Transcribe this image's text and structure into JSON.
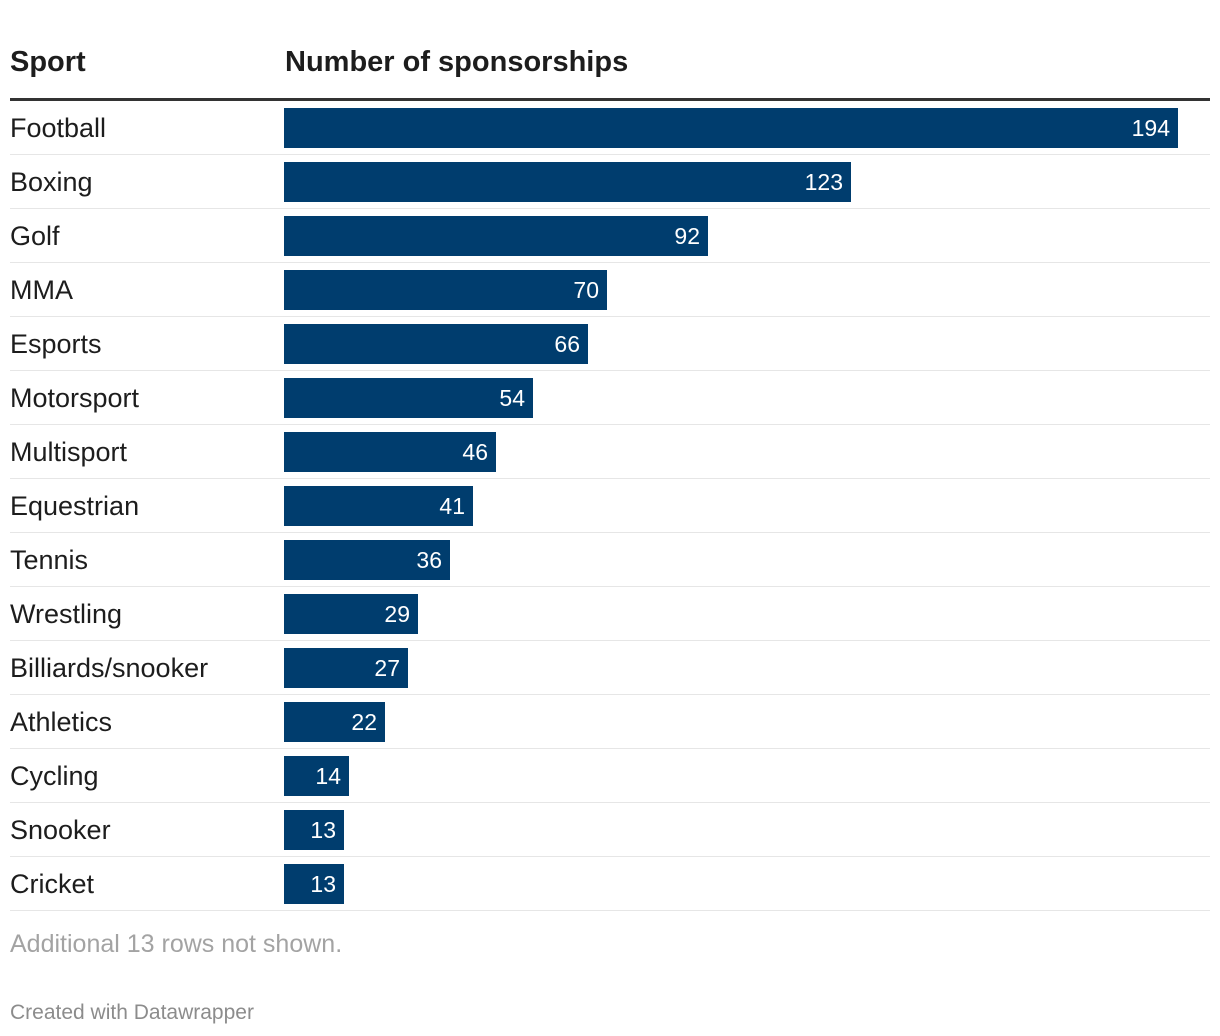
{
  "chart_data": {
    "type": "bar",
    "columns": {
      "sport": "Sport",
      "number": "Number of sponsorships"
    },
    "categories": [
      "Football",
      "Boxing",
      "Golf",
      "MMA",
      "Esports",
      "Motorsport",
      "Multisport",
      "Equestrian",
      "Tennis",
      "Wrestling",
      "Billiards/snooker",
      "Athletics",
      "Cycling",
      "Snooker",
      "Cricket"
    ],
    "values": [
      194,
      123,
      92,
      70,
      66,
      54,
      46,
      41,
      36,
      29,
      27,
      22,
      14,
      13,
      13
    ],
    "xlim": [
      0,
      194
    ],
    "bar_color": "#003d6e"
  },
  "footer": {
    "note": "Additional 13 rows not shown.",
    "credit": "Created with Datawrapper"
  }
}
